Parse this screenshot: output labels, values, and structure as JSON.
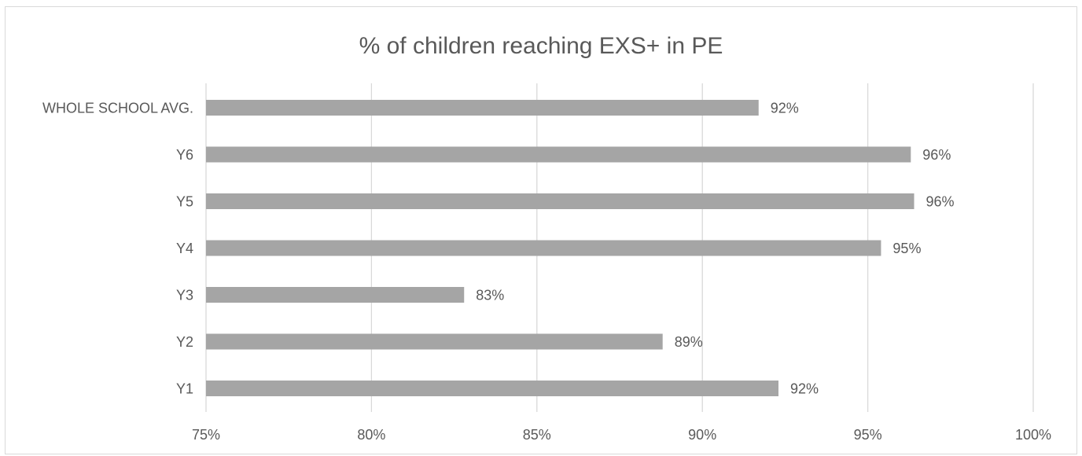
{
  "chart_data": {
    "type": "bar",
    "orientation": "horizontal",
    "title": "% of children reaching EXS+ in PE",
    "xlabel": "",
    "ylabel": "",
    "categories": [
      "WHOLE SCHOOL AVG.",
      "Y6",
      "Y5",
      "Y4",
      "Y3",
      "Y2",
      "Y1"
    ],
    "values": [
      91.7,
      96.3,
      96.4,
      95.4,
      82.8,
      88.8,
      92.3
    ],
    "data_labels": [
      "92%",
      "96%",
      "96%",
      "95%",
      "83%",
      "89%",
      "92%"
    ],
    "xlim": [
      75,
      100
    ],
    "xticks": [
      75,
      80,
      85,
      90,
      95,
      100
    ],
    "xtick_labels": [
      "75%",
      "80%",
      "85%",
      "90%",
      "95%",
      "100%"
    ],
    "grid": "vertical",
    "legend": "none",
    "colors": {
      "bar": "#a5a5a5",
      "grid": "#d9d9d9",
      "text": "#595959"
    }
  }
}
